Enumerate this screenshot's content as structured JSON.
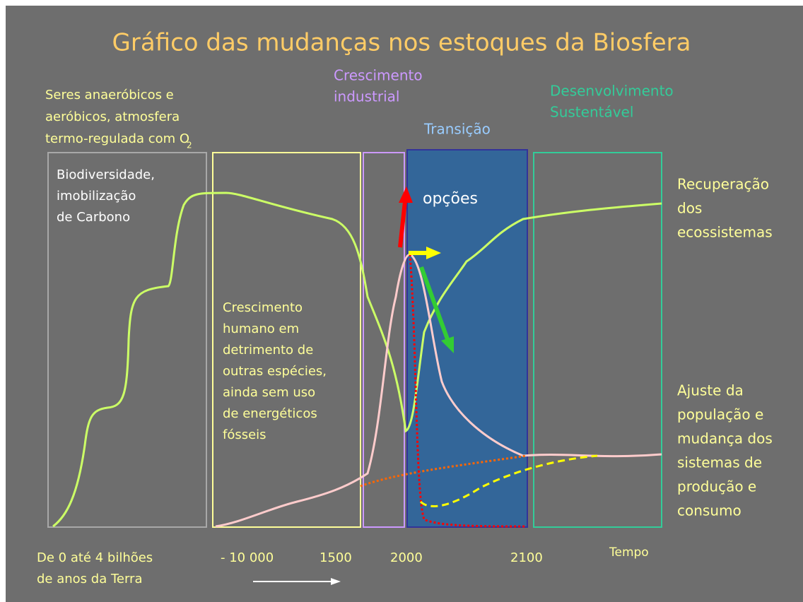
{
  "title": "Gráfico das mudanças nos estoques da Biosfera",
  "labels": {
    "origin": [
      "Seres anaeróbicos e",
      "aeróbicos, atmosfera",
      "termo-regulada com O"
    ],
    "origin_sub": "2",
    "industrial": [
      "Crescimento",
      "industrial"
    ],
    "sustainable": [
      "Desenvolvimento",
      "Sustentável"
    ],
    "transition": "Transição",
    "biodiversity": [
      "Biodiversidade,",
      "imobilização",
      "de Carbono"
    ],
    "options": "opções",
    "human": [
      "Crescimento",
      "humano em",
      "detrimento de",
      "outras espécies,",
      "ainda sem uso",
      "de energéticos",
      "fósseis"
    ],
    "recovery": [
      "Recuperação",
      "dos",
      "ecossistemas"
    ],
    "adjust": [
      "Ajuste da",
      "população e",
      "mudança dos",
      "sistemas de",
      "produção e",
      "consumo"
    ]
  },
  "timeline": {
    "start": [
      "De 0 até 4 bilhões",
      "de anos da Terra"
    ],
    "marks": [
      "- 10 000",
      "1500",
      "2000",
      "2100"
    ],
    "axis_label": "Tempo"
  }
}
